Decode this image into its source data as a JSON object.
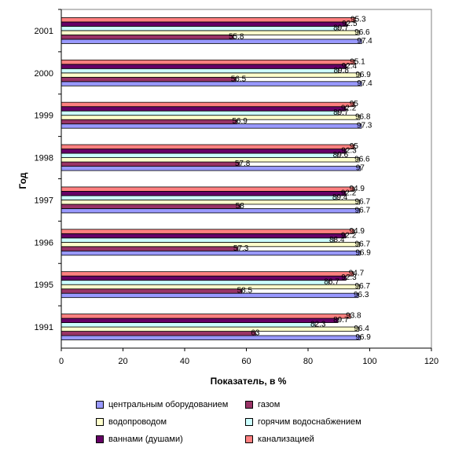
{
  "chart_data": {
    "type": "bar",
    "orientation": "horizontal",
    "title": "",
    "xlabel": "Показатель, в %",
    "ylabel": "Год",
    "xlim": [
      0,
      120
    ],
    "xticks": [
      0,
      20,
      40,
      60,
      80,
      100,
      120
    ],
    "grid": false,
    "legend_position": "bottom",
    "categories": [
      "1991",
      "1995",
      "1996",
      "1997",
      "1998",
      "1999",
      "2000",
      "2001"
    ],
    "series": [
      {
        "name": "центральным оборудованием",
        "color": "#9999ff",
        "values": [
          96.9,
          96.3,
          96.9,
          96.7,
          97,
          97.3,
          97.4,
          97.4
        ]
      },
      {
        "name": "газом",
        "color": "#993366",
        "values": [
          63,
          58.5,
          57.3,
          58,
          57.8,
          56.9,
          56.5,
          55.8
        ]
      },
      {
        "name": "водопроводом",
        "color": "#ffffcc",
        "values": [
          96.4,
          96.7,
          96.7,
          96.7,
          96.6,
          96.8,
          96.9,
          96.6
        ]
      },
      {
        "name": "горячим водоснабжением",
        "color": "#ccffff",
        "values": [
          82.3,
          86.7,
          88.4,
          89.4,
          89.6,
          89.7,
          89.8,
          89.7
        ]
      },
      {
        "name": "ваннами (душами)",
        "color": "#660066",
        "values": [
          89.7,
          92.3,
          92.2,
          92.2,
          92.3,
          92.2,
          92.4,
          92.5
        ]
      },
      {
        "name": "канализацией",
        "color": "#ff8080",
        "values": [
          93.8,
          94.7,
          94.9,
          94.9,
          95,
          95,
          95.1,
          95.3
        ]
      }
    ]
  }
}
